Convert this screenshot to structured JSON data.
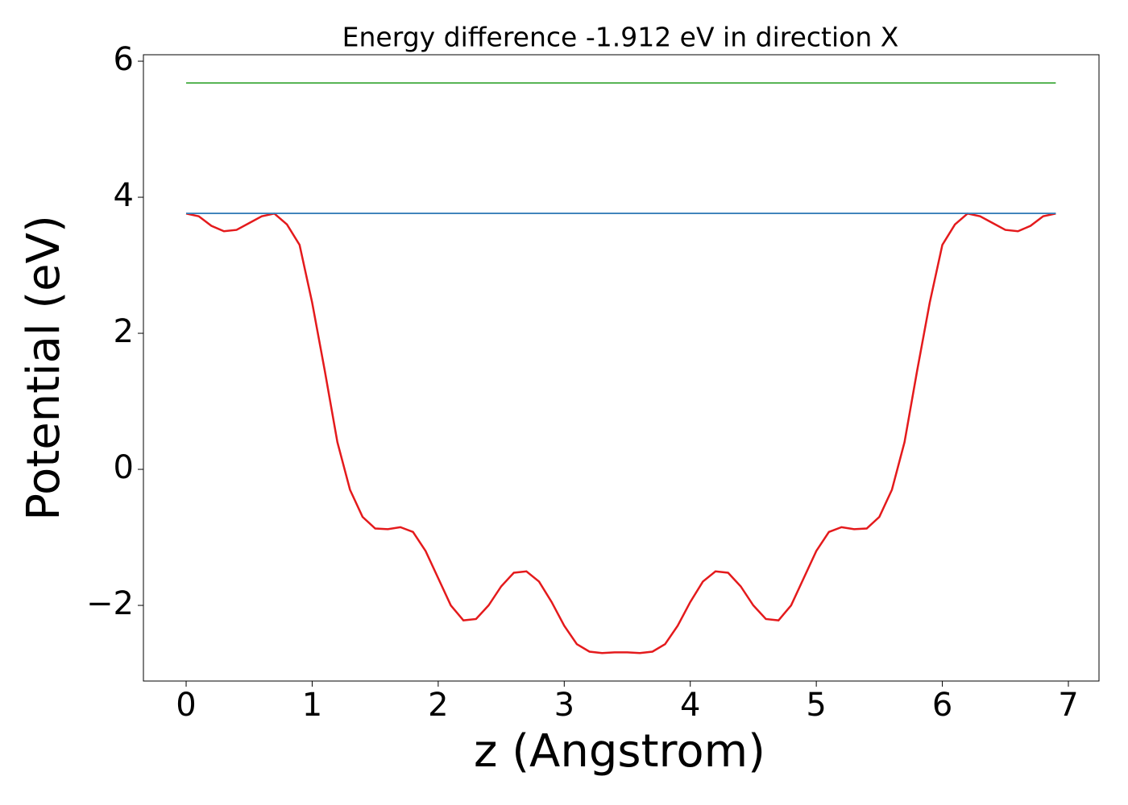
{
  "chart_data": {
    "type": "line",
    "title": "Energy difference -1.912 eV in direction X",
    "x_label": "z (Angstrom)",
    "y_label": "Potential (eV)",
    "xlim": [
      -0.339,
      7.243
    ],
    "ylim": [
      -3.112,
      6.095
    ],
    "xticks": [
      0,
      1,
      2,
      3,
      4,
      5,
      6,
      7
    ],
    "yticks": [
      {
        "value": -2,
        "label": "−2"
      },
      0,
      2,
      4,
      6
    ],
    "x": [
      0,
      0.1,
      0.2,
      0.3,
      0.4,
      0.5,
      0.6,
      0.7,
      0.8,
      0.9,
      1.0,
      1.1,
      1.2,
      1.3,
      1.4,
      1.5,
      1.6,
      1.7,
      1.8,
      1.9,
      2.0,
      2.1,
      2.2,
      2.3,
      2.4,
      2.5,
      2.6,
      2.7,
      2.8,
      2.9,
      3.0,
      3.1,
      3.2,
      3.3,
      3.4,
      3.5,
      3.6,
      3.7,
      3.8,
      3.9,
      4.0,
      4.1,
      4.2,
      4.3,
      4.4,
      4.5,
      4.6,
      4.7,
      4.8,
      4.9,
      5.0,
      5.1,
      5.2,
      5.3,
      5.4,
      5.5,
      5.6,
      5.7,
      5.8,
      5.9,
      6.0,
      6.1,
      6.2,
      6.3,
      6.4,
      6.5,
      6.6,
      6.7,
      6.8,
      6.9
    ],
    "series": [
      {
        "color": "#e41a1c",
        "values": [
          3.76,
          3.72,
          3.58,
          3.5,
          3.52,
          3.62,
          3.72,
          3.76,
          3.6,
          3.3,
          2.45,
          1.45,
          0.4,
          -0.3,
          -0.7,
          -0.87,
          -0.88,
          -0.85,
          -0.92,
          -1.2,
          -1.6,
          -2.0,
          -2.22,
          -2.2,
          -2.0,
          -1.72,
          -1.52,
          -1.5,
          -1.65,
          -1.95,
          -2.3,
          -2.57,
          -2.68,
          -2.7,
          -2.69,
          -2.69,
          -2.7,
          -2.68,
          -2.57,
          -2.3,
          -1.95,
          -1.65,
          -1.5,
          -1.52,
          -1.72,
          -2.0,
          -2.2,
          -2.22,
          -2.0,
          -1.6,
          -1.2,
          -0.92,
          -0.85,
          -0.88,
          -0.87,
          -0.7,
          -0.3,
          0.4,
          1.45,
          2.45,
          3.3,
          3.6,
          3.76,
          3.72,
          3.62,
          3.52,
          3.5,
          3.58,
          3.72,
          3.76
        ]
      },
      {
        "color": "#377eb8",
        "x": [
          0,
          6.9
        ],
        "values": [
          3.763,
          3.763
        ]
      },
      {
        "color": "#4daf4a",
        "x": [
          0,
          6.9
        ],
        "values": [
          5.68,
          5.68
        ]
      }
    ]
  }
}
